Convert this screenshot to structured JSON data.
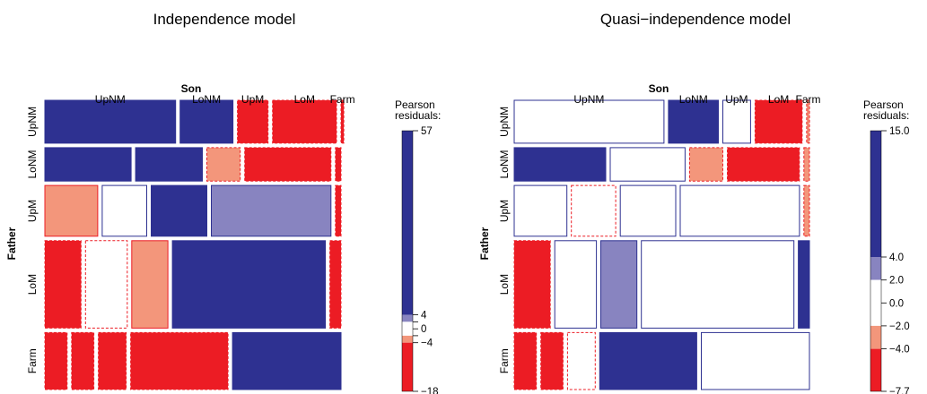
{
  "chart_data": [
    {
      "type": "mosaic",
      "title": "Independence model",
      "xlabel": "Son",
      "ylabel": "Father",
      "col_labels": [
        "UpNM",
        "LoNM",
        "UpM",
        "LoM",
        "Farm"
      ],
      "row_labels": [
        "UpNM",
        "LoNM",
        "UpM",
        "LoM",
        "Farm"
      ],
      "row_proportions": [
        0.158,
        0.123,
        0.187,
        0.322,
        0.21
      ],
      "col_proportions": [
        [
          0.47,
          0.19,
          0.11,
          0.23,
          0.01
        ],
        [
          0.31,
          0.24,
          0.12,
          0.31,
          0.02
        ],
        [
          0.19,
          0.16,
          0.2,
          0.43,
          0.02
        ],
        [
          0.13,
          0.15,
          0.13,
          0.55,
          0.04
        ],
        [
          0.08,
          0.08,
          0.1,
          0.35,
          0.39
        ]
      ],
      "residuals": [
        [
          57,
          20,
          -9,
          -12,
          -5
        ],
        [
          19,
          16,
          -3,
          -9,
          -4
        ],
        [
          -2,
          1,
          18,
          3,
          -5
        ],
        [
          -15,
          -1,
          -2,
          22,
          -6
        ],
        [
          -18,
          -11,
          -8,
          -9,
          57
        ]
      ],
      "legend": {
        "title": "Pearson\nresiduals:",
        "tick_labels": [
          "57",
          "4",
          "0",
          "−4",
          "−18"
        ],
        "tick_values": [
          57,
          4,
          0,
          -4,
          -18
        ],
        "range": [
          -18,
          57
        ],
        "minor_ticks": [
          2,
          -2
        ]
      }
    },
    {
      "type": "mosaic",
      "title": "Quasi−independence model",
      "xlabel": "Son",
      "ylabel": "Father",
      "col_labels": [
        "UpNM",
        "LoNM",
        "UpM",
        "LoM",
        "Farm"
      ],
      "row_labels": [
        "UpNM",
        "LoNM",
        "UpM",
        "LoM",
        "Farm"
      ],
      "row_proportions": [
        0.158,
        0.123,
        0.187,
        0.322,
        0.21
      ],
      "col_proportions": [
        [
          0.54,
          0.18,
          0.1,
          0.17,
          0.01
        ],
        [
          0.33,
          0.27,
          0.12,
          0.26,
          0.02
        ],
        [
          0.19,
          0.16,
          0.2,
          0.43,
          0.02
        ],
        [
          0.13,
          0.15,
          0.13,
          0.55,
          0.04
        ],
        [
          0.08,
          0.08,
          0.1,
          0.35,
          0.39
        ]
      ],
      "residuals": [
        [
          0,
          15,
          1,
          -7.7,
          -3
        ],
        [
          15,
          0,
          -3,
          -7.7,
          -3
        ],
        [
          1,
          -1,
          0,
          1,
          -3
        ],
        [
          -7.7,
          1,
          3,
          0,
          15
        ],
        [
          -7.7,
          -7.7,
          -1,
          15,
          0
        ]
      ],
      "legend": {
        "title": "Pearson\nresiduals:",
        "tick_labels": [
          "15.0",
          "4.0",
          "2.0",
          "0.0",
          "−2.0",
          "−4.0",
          "−7.7"
        ],
        "tick_values": [
          15,
          4,
          2,
          0,
          -2,
          -4,
          -7.7
        ],
        "range": [
          -7.7,
          15
        ],
        "minor_ticks": []
      }
    }
  ],
  "colors": {
    "strong_positive": "#2e3191",
    "weak_positive": "#8884c0",
    "neutral": "#ffffff",
    "weak_negative": "#f3967b",
    "strong_negative": "#ec1c24"
  }
}
